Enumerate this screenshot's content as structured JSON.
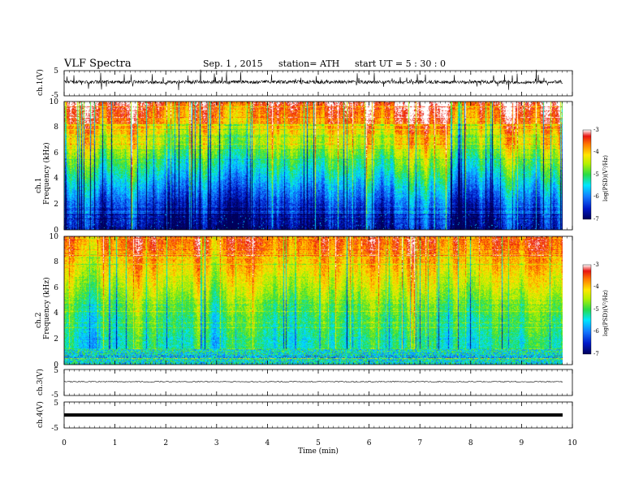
{
  "header": {
    "title": "VLF  Spectra",
    "date": "Sep. 1  , 2015",
    "station": "station= ATH",
    "start": "start  UT  =   5  : 30 : 0"
  },
  "chart_data": [
    {
      "id": "ch1-waveform",
      "type": "line",
      "ylabel": "ch.1(V)",
      "ylim": [
        -5,
        5
      ],
      "yticks": [
        5,
        -5
      ],
      "xlim": [
        0,
        10
      ],
      "data_extent_min": [
        0,
        9.8
      ],
      "description_level": 0
    },
    {
      "id": "ch1-spectrogram",
      "type": "heatmap",
      "ylabel": "Frequency  (kHz)",
      "channel_label": "ch.1",
      "ylim": [
        0,
        10
      ],
      "yticks": [
        "0",
        "2",
        "4",
        "6",
        "8",
        "10"
      ],
      "xlim": [
        0,
        10
      ],
      "colorbar": {
        "label": "log(PSD)(V²/Hz)",
        "ticks": [
          "-3",
          "-4",
          "-5",
          "-6",
          "-7"
        ],
        "range": [
          -7,
          -3
        ]
      }
    },
    {
      "id": "ch2-spectrogram",
      "type": "heatmap",
      "ylabel": "Frequency  (kHz)",
      "channel_label": "ch.2",
      "ylim": [
        0,
        10
      ],
      "yticks": [
        "0",
        "2",
        "4",
        "6",
        "8",
        "10"
      ],
      "xlim": [
        0,
        10
      ],
      "colorbar": {
        "label": "log(PSD)(V²/Hz)",
        "ticks": [
          "-3",
          "-4",
          "-5",
          "-6",
          "-7"
        ],
        "range": [
          -7,
          -3
        ]
      }
    },
    {
      "id": "ch3-waveform",
      "type": "line",
      "ylabel": "ch.3(V)",
      "ylim": [
        -5,
        5
      ],
      "yticks": [
        5,
        -5
      ],
      "xlim": [
        0,
        10
      ],
      "level": 0
    },
    {
      "id": "ch4-waveform",
      "type": "line",
      "ylabel": "ch.4(V)",
      "ylim": [
        -5,
        5
      ],
      "yticks": [
        5,
        -5
      ],
      "xlim": [
        0,
        10
      ],
      "level": 0
    }
  ],
  "xaxis": {
    "label": "Time  (min)",
    "ticks": [
      "0",
      "1",
      "2",
      "3",
      "4",
      "5",
      "6",
      "7",
      "8",
      "9",
      "10"
    ]
  },
  "colors": {
    "spectro_low": "#00007a",
    "spectro_high": "#e8141a",
    "trace": "#000000"
  }
}
